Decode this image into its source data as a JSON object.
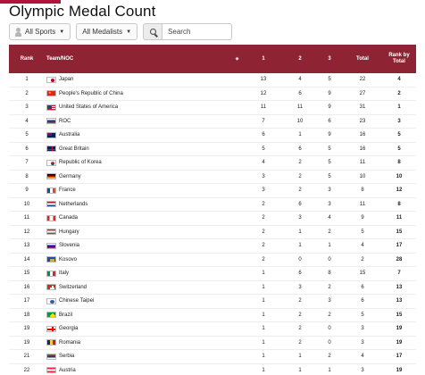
{
  "page": {
    "title": "Olympic Medal Count",
    "accent_color": "#b3123a",
    "header_color": "#8e2433"
  },
  "filters": {
    "sports": {
      "label": "All Sports"
    },
    "medalists": {
      "label": "All Medalists"
    },
    "search": {
      "placeholder": "Search"
    }
  },
  "table": {
    "headers": {
      "rank": "Rank",
      "team": "Team/NOC",
      "gold": "1",
      "silver": "2",
      "bronze": "3",
      "total": "Total",
      "rank_total": "Rank by Total"
    },
    "rows": [
      {
        "rank": "1",
        "team": "Japan",
        "flag": "japan",
        "gold": "13",
        "silver": "4",
        "bronze": "5",
        "total": "22",
        "rank_total": "4"
      },
      {
        "rank": "2",
        "team": "People's Republic of China",
        "flag": "china",
        "gold": "12",
        "silver": "6",
        "bronze": "9",
        "total": "27",
        "rank_total": "2"
      },
      {
        "rank": "3",
        "team": "United States of America",
        "flag": "usa",
        "gold": "11",
        "silver": "11",
        "bronze": "9",
        "total": "31",
        "rank_total": "1"
      },
      {
        "rank": "4",
        "team": "ROC",
        "flag": "roc",
        "gold": "7",
        "silver": "10",
        "bronze": "6",
        "total": "23",
        "rank_total": "3"
      },
      {
        "rank": "5",
        "team": "Australia",
        "flag": "australia",
        "gold": "6",
        "silver": "1",
        "bronze": "9",
        "total": "16",
        "rank_total": "5"
      },
      {
        "rank": "6",
        "team": "Great Britain",
        "flag": "gb",
        "gold": "5",
        "silver": "6",
        "bronze": "5",
        "total": "16",
        "rank_total": "5"
      },
      {
        "rank": "7",
        "team": "Republic of Korea",
        "flag": "korea",
        "gold": "4",
        "silver": "2",
        "bronze": "5",
        "total": "11",
        "rank_total": "8"
      },
      {
        "rank": "8",
        "team": "Germany",
        "flag": "germany",
        "gold": "3",
        "silver": "2",
        "bronze": "5",
        "total": "10",
        "rank_total": "10"
      },
      {
        "rank": "9",
        "team": "France",
        "flag": "france",
        "gold": "3",
        "silver": "2",
        "bronze": "3",
        "total": "8",
        "rank_total": "12"
      },
      {
        "rank": "10",
        "team": "Netherlands",
        "flag": "netherlands",
        "gold": "2",
        "silver": "6",
        "bronze": "3",
        "total": "11",
        "rank_total": "8"
      },
      {
        "rank": "11",
        "team": "Canada",
        "flag": "canada",
        "gold": "2",
        "silver": "3",
        "bronze": "4",
        "total": "9",
        "rank_total": "11"
      },
      {
        "rank": "12",
        "team": "Hungary",
        "flag": "hungary",
        "gold": "2",
        "silver": "1",
        "bronze": "2",
        "total": "5",
        "rank_total": "15"
      },
      {
        "rank": "13",
        "team": "Slovenia",
        "flag": "slovenia",
        "gold": "2",
        "silver": "1",
        "bronze": "1",
        "total": "4",
        "rank_total": "17"
      },
      {
        "rank": "14",
        "team": "Kosovo",
        "flag": "kosovo",
        "gold": "2",
        "silver": "0",
        "bronze": "0",
        "total": "2",
        "rank_total": "28"
      },
      {
        "rank": "15",
        "team": "Italy",
        "flag": "italy",
        "gold": "1",
        "silver": "6",
        "bronze": "8",
        "total": "15",
        "rank_total": "7"
      },
      {
        "rank": "16",
        "team": "Switzerland",
        "flag": "switzerland",
        "gold": "1",
        "silver": "3",
        "bronze": "2",
        "total": "6",
        "rank_total": "13"
      },
      {
        "rank": "17",
        "team": "Chinese Taipei",
        "flag": "taipei",
        "gold": "1",
        "silver": "2",
        "bronze": "3",
        "total": "6",
        "rank_total": "13"
      },
      {
        "rank": "18",
        "team": "Brazil",
        "flag": "brazil",
        "gold": "1",
        "silver": "2",
        "bronze": "2",
        "total": "5",
        "rank_total": "15"
      },
      {
        "rank": "19",
        "team": "Georgia",
        "flag": "georgia",
        "gold": "1",
        "silver": "2",
        "bronze": "0",
        "total": "3",
        "rank_total": "19"
      },
      {
        "rank": "19",
        "team": "Romania",
        "flag": "romania",
        "gold": "1",
        "silver": "2",
        "bronze": "0",
        "total": "3",
        "rank_total": "19"
      },
      {
        "rank": "21",
        "team": "Serbia",
        "flag": "serbia",
        "gold": "1",
        "silver": "1",
        "bronze": "2",
        "total": "4",
        "rank_total": "17"
      },
      {
        "rank": "22",
        "team": "Austria",
        "flag": "austria",
        "gold": "1",
        "silver": "1",
        "bronze": "1",
        "total": "3",
        "rank_total": "19"
      }
    ]
  }
}
